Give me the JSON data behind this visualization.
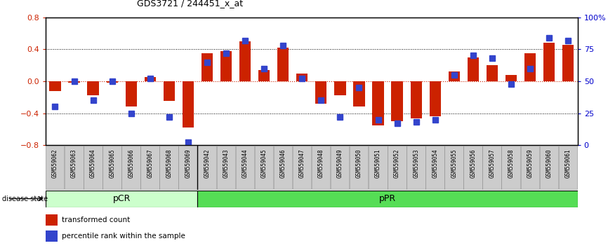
{
  "title": "GDS3721 / 244451_x_at",
  "samples": [
    "GSM559062",
    "GSM559063",
    "GSM559064",
    "GSM559065",
    "GSM559066",
    "GSM559067",
    "GSM559068",
    "GSM559069",
    "GSM559042",
    "GSM559043",
    "GSM559044",
    "GSM559045",
    "GSM559046",
    "GSM559047",
    "GSM559048",
    "GSM559049",
    "GSM559050",
    "GSM559051",
    "GSM559052",
    "GSM559053",
    "GSM559054",
    "GSM559055",
    "GSM559056",
    "GSM559057",
    "GSM559058",
    "GSM559059",
    "GSM559060",
    "GSM559061"
  ],
  "red_values": [
    -0.12,
    -0.02,
    -0.18,
    -0.02,
    -0.32,
    0.05,
    -0.25,
    -0.58,
    0.35,
    0.38,
    0.5,
    0.14,
    0.42,
    0.1,
    -0.28,
    -0.18,
    -0.32,
    -0.55,
    -0.5,
    -0.47,
    -0.44,
    0.12,
    0.3,
    0.2,
    0.08,
    0.35,
    0.48,
    0.46
  ],
  "blue_values": [
    30,
    50,
    35,
    50,
    25,
    52,
    22,
    2,
    65,
    72,
    82,
    60,
    78,
    52,
    35,
    22,
    45,
    20,
    17,
    18,
    20,
    55,
    70,
    68,
    48,
    60,
    84,
    82
  ],
  "pcr_count": 8,
  "ppr_count": 20,
  "ylim_left": [
    -0.8,
    0.8
  ],
  "ylim_right": [
    0,
    100
  ],
  "right_ticks": [
    0,
    25,
    50,
    75,
    100
  ],
  "right_tick_labels": [
    "0",
    "25",
    "50",
    "75",
    "100%"
  ],
  "left_ticks": [
    -0.8,
    -0.4,
    0,
    0.4,
    0.8
  ],
  "hline_dashed": [
    -0.4,
    0.4
  ],
  "hline_red": 0,
  "red_color": "#cc2200",
  "blue_color": "#3344cc",
  "pcr_fill": "#ccffcc",
  "ppr_fill": "#55dd55",
  "label_bg": "#cccccc",
  "tick_color_left": "#cc2200",
  "tick_color_right": "#0000cc",
  "bar_width": 0.6,
  "blue_marker_size": 6
}
